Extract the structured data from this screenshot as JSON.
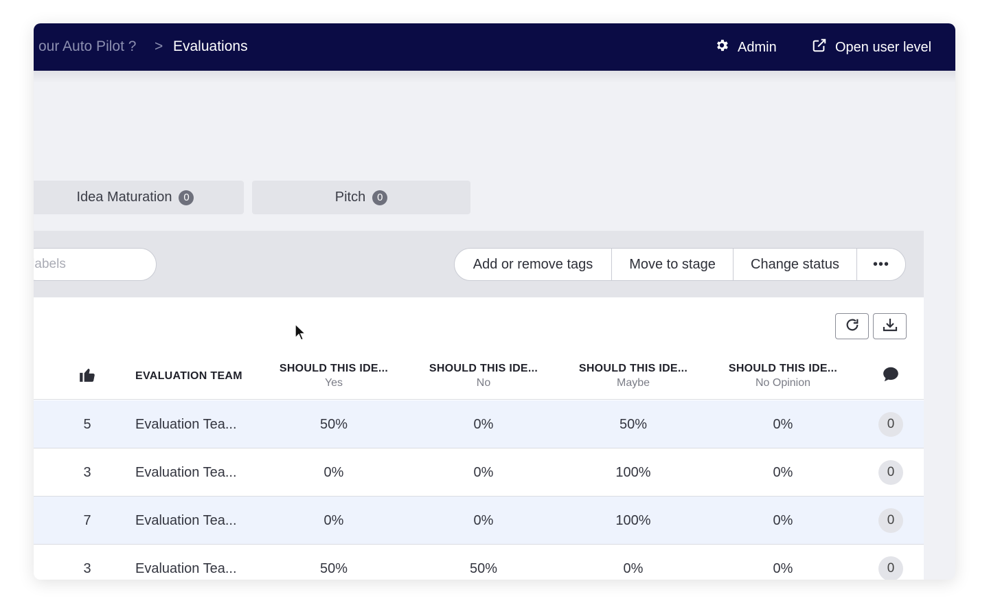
{
  "header": {
    "breadcrumb_prev": "our Auto Pilot ?",
    "breadcrumb_sep": ">",
    "breadcrumb_current": "Evaluations",
    "admin_label": "Admin",
    "open_user_label": "Open user level",
    "background_color": "#0b0c45"
  },
  "stages": [
    {
      "label": "Idea Maturation",
      "count": "0"
    },
    {
      "label": "Pitch",
      "count": "0"
    }
  ],
  "toolbar": {
    "search_placeholder": "er labels",
    "actions": {
      "tags": "Add or remove tags",
      "move": "Move to stage",
      "status": "Change status",
      "more": "•••"
    }
  },
  "table": {
    "columns": {
      "votes_icon": "thumbs-up-icon",
      "team": "EVALUATION TEAM",
      "q1": {
        "title": "SHOULD THIS IDE...",
        "sub": "Yes"
      },
      "q2": {
        "title": "SHOULD THIS IDE...",
        "sub": "No"
      },
      "q3": {
        "title": "SHOULD THIS IDE...",
        "sub": "Maybe"
      },
      "q4": {
        "title": "SHOULD THIS IDE...",
        "sub": "No Opinion"
      },
      "comments_icon": "comment-icon"
    },
    "rows": [
      {
        "votes": "5",
        "team": "Evaluation Tea...",
        "yes": "50%",
        "no": "0%",
        "maybe": "50%",
        "no_opinion": "0%",
        "comments": "0"
      },
      {
        "votes": "3",
        "team": "Evaluation Tea...",
        "yes": "0%",
        "no": "0%",
        "maybe": "100%",
        "no_opinion": "0%",
        "comments": "0"
      },
      {
        "votes": "7",
        "team": "Evaluation Tea...",
        "yes": "0%",
        "no": "0%",
        "maybe": "100%",
        "no_opinion": "0%",
        "comments": "0"
      },
      {
        "votes": "3",
        "team": "Evaluation Tea...",
        "yes": "50%",
        "no": "50%",
        "maybe": "0%",
        "no_opinion": "0%",
        "comments": "0"
      }
    ]
  }
}
